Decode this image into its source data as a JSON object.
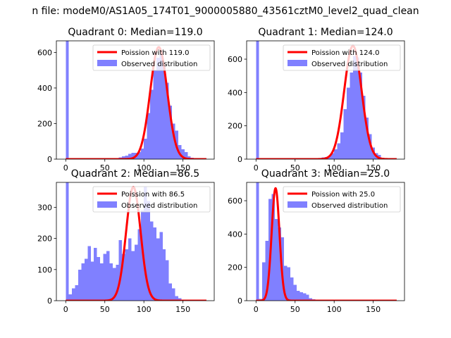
{
  "figure": {
    "suptitle": "n file: modeM0/AS1A05_174T01_9000005880_43561cztM0_level2_quad_clean"
  },
  "colors": {
    "poisson": "#ff0000",
    "observed": "#8080ff",
    "text": "#000000"
  },
  "chart_data": [
    {
      "type": "bar",
      "title": "Quadrant 0: Median=119.0",
      "xlim": [
        -12,
        190
      ],
      "ylim": [
        0,
        665
      ],
      "xticks": [
        0,
        50,
        100,
        150
      ],
      "yticks": [
        0,
        200,
        400,
        600
      ],
      "bin_width": 4,
      "legend_position": "upper right",
      "series": [
        {
          "name": "Poission with 119.0",
          "kind": "line",
          "mean": 119.0,
          "peak": 630
        },
        {
          "name": "Observed distribution",
          "kind": "hist",
          "bins": [
            0,
            4,
            8,
            12,
            16,
            20,
            24,
            28,
            32,
            36,
            40,
            44,
            48,
            52,
            56,
            60,
            64,
            68,
            72,
            76,
            80,
            84,
            88,
            92,
            96,
            100,
            104,
            108,
            112,
            116,
            120,
            124,
            128,
            132,
            136,
            140,
            144,
            148,
            152,
            156,
            160,
            164,
            168,
            172
          ],
          "counts": [
            665,
            0,
            0,
            0,
            0,
            0,
            0,
            0,
            0,
            0,
            0,
            0,
            0,
            0,
            0,
            0,
            0,
            10,
            15,
            20,
            30,
            35,
            35,
            40,
            60,
            115,
            260,
            390,
            500,
            570,
            590,
            520,
            430,
            300,
            200,
            160,
            80,
            55,
            40,
            15,
            8,
            3,
            1,
            0
          ]
        }
      ]
    },
    {
      "type": "bar",
      "title": "Quadrant 1: Median=124.0",
      "xlim": [
        -12,
        190
      ],
      "ylim": [
        0,
        710
      ],
      "xticks": [
        0,
        50,
        100,
        150
      ],
      "yticks": [
        0,
        200,
        400,
        600
      ],
      "bin_width": 4,
      "legend_position": "upper right",
      "series": [
        {
          "name": "Poission with 124.0",
          "kind": "line",
          "mean": 124.0,
          "peak": 680
        },
        {
          "name": "Observed distribution",
          "kind": "hist",
          "bins": [
            0,
            4,
            8,
            12,
            16,
            20,
            24,
            28,
            32,
            36,
            40,
            44,
            48,
            52,
            56,
            60,
            64,
            68,
            72,
            76,
            80,
            84,
            88,
            92,
            96,
            100,
            104,
            108,
            112,
            116,
            120,
            124,
            128,
            132,
            136,
            140,
            144,
            148,
            152,
            156,
            160,
            164,
            168,
            172
          ],
          "counts": [
            710,
            0,
            0,
            0,
            0,
            0,
            0,
            0,
            0,
            0,
            0,
            0,
            0,
            0,
            0,
            0,
            0,
            0,
            0,
            0,
            5,
            10,
            12,
            20,
            35,
            60,
            95,
            160,
            300,
            430,
            520,
            620,
            610,
            520,
            380,
            250,
            150,
            70,
            35,
            25,
            8,
            3,
            1,
            0
          ]
        }
      ]
    },
    {
      "type": "bar",
      "title": "Quadrant 2: Median=86.5",
      "xlim": [
        -12,
        190
      ],
      "ylim": [
        0,
        380
      ],
      "xticks": [
        0,
        50,
        100,
        150
      ],
      "yticks": [
        0,
        100,
        200,
        300
      ],
      "bin_width": 4,
      "legend_position": "upper right",
      "series": [
        {
          "name": "Poission with 86.5",
          "kind": "line",
          "mean": 86.5,
          "peak": 365
        },
        {
          "name": "Observed distribution",
          "kind": "hist",
          "bins": [
            0,
            4,
            8,
            12,
            16,
            20,
            24,
            28,
            32,
            36,
            40,
            44,
            48,
            52,
            56,
            60,
            64,
            68,
            72,
            76,
            80,
            84,
            88,
            92,
            96,
            100,
            104,
            108,
            112,
            116,
            120,
            124,
            128,
            132,
            136,
            140,
            144,
            148,
            152,
            156,
            160,
            164,
            168,
            172
          ],
          "counts": [
            380,
            20,
            40,
            50,
            100,
            120,
            135,
            175,
            125,
            170,
            140,
            120,
            150,
            160,
            120,
            105,
            115,
            195,
            150,
            165,
            200,
            160,
            180,
            230,
            290,
            365,
            320,
            255,
            235,
            200,
            220,
            165,
            130,
            55,
            40,
            15,
            8,
            3,
            2,
            1,
            0,
            0,
            0,
            0
          ]
        }
      ]
    },
    {
      "type": "bar",
      "title": "Quadrant 3: Median=25.0",
      "xlim": [
        -12,
        190
      ],
      "ylim": [
        0,
        710
      ],
      "xticks": [
        0,
        50,
        100,
        150
      ],
      "yticks": [
        0,
        200,
        400,
        600
      ],
      "bin_width": 4,
      "legend_position": "upper right",
      "series": [
        {
          "name": "Poission with 25.0",
          "kind": "line",
          "mean": 25.0,
          "peak": 675
        },
        {
          "name": "Observed distribution",
          "kind": "hist",
          "bins": [
            0,
            4,
            8,
            12,
            16,
            20,
            24,
            28,
            32,
            36,
            40,
            44,
            48,
            52,
            56,
            60,
            64,
            68,
            72,
            76,
            80,
            84,
            88,
            92,
            96,
            100,
            104,
            108,
            112,
            116,
            120,
            124,
            128,
            132,
            136,
            140,
            144,
            148,
            152,
            156,
            160,
            164,
            168,
            172
          ],
          "counts": [
            710,
            10,
            230,
            360,
            610,
            640,
            490,
            440,
            380,
            210,
            200,
            140,
            95,
            60,
            50,
            45,
            35,
            15,
            8,
            5,
            3,
            2,
            1,
            0,
            0,
            0,
            0,
            0,
            0,
            0,
            0,
            0,
            0,
            0,
            0,
            0,
            0,
            0,
            0,
            0,
            0,
            0,
            0,
            0
          ]
        }
      ]
    }
  ]
}
